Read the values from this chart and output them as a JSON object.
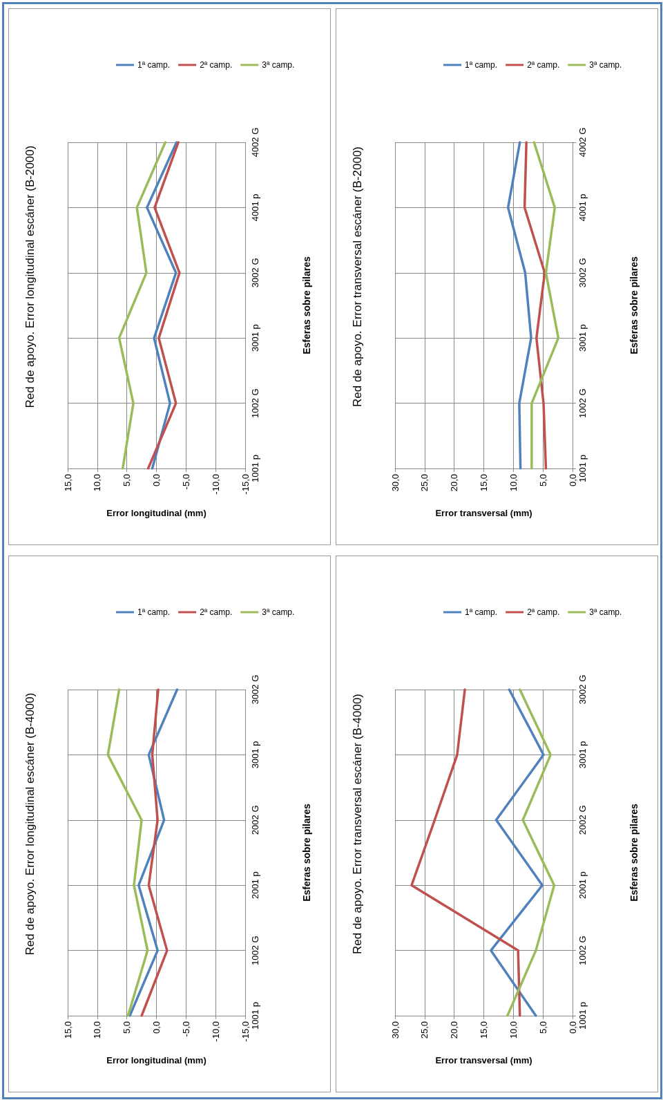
{
  "chart_data": [
    {
      "type": "line",
      "orientation": "horizontal",
      "title": "Red de apoyo. Error longitudinal escáner (B-2000)",
      "xlabel": "Error longitudinal (mm)",
      "ylabel": "Esferas sobre pilares",
      "categories": [
        "4002 G",
        "4001 p",
        "3002 G",
        "3001 p",
        "1002 G",
        "1001 p"
      ],
      "series": [
        {
          "name": "1ª camp.",
          "color": "#4f81bd",
          "values": [
            -3.4,
            1.6,
            -3.3,
            0.4,
            -2.3,
            0.7
          ]
        },
        {
          "name": "2ª camp.",
          "color": "#c0504d",
          "values": [
            -3.7,
            0.3,
            -3.9,
            -0.4,
            -3.3,
            1.4
          ]
        },
        {
          "name": "3ª camp.",
          "color": "#9bbb59",
          "values": [
            -1.5,
            3.3,
            1.7,
            6.3,
            3.9,
            5.7
          ]
        }
      ],
      "xlim": [
        15,
        -15
      ],
      "xticks": [
        {
          "value": 15,
          "label": "15,0"
        },
        {
          "value": 10,
          "label": "10,0"
        },
        {
          "value": 5,
          "label": "5,0"
        },
        {
          "value": 0,
          "label": "0,0"
        },
        {
          "value": -5,
          "label": "-5,0"
        },
        {
          "value": -10,
          "label": "-10,0"
        },
        {
          "value": -15,
          "label": "-15,0"
        }
      ],
      "grid": true,
      "legend": "top",
      "marker": "none"
    },
    {
      "type": "line",
      "orientation": "horizontal",
      "title": "Red de apoyo. Error transversal escáner (B-2000)",
      "xlabel": "Error transversal (mm)",
      "ylabel": "Esferas sobre pilares",
      "categories": [
        "4002 G",
        "4001 p",
        "3002 G",
        "3001 p",
        "1002 G",
        "1001 p"
      ],
      "series": [
        {
          "name": "1ª camp.",
          "color": "#4f81bd",
          "values": [
            8.9,
            10.9,
            8.0,
            7.0,
            9.0,
            8.8
          ]
        },
        {
          "name": "2ª camp.",
          "color": "#c0504d",
          "values": [
            7.8,
            8.1,
            4.7,
            6.1,
            4.9,
            4.5
          ]
        },
        {
          "name": "3ª camp.",
          "color": "#9bbb59",
          "values": [
            6.5,
            3.0,
            4.5,
            2.4,
            6.9,
            6.9
          ]
        }
      ],
      "xlim": [
        30,
        0
      ],
      "xticks": [
        {
          "value": 30,
          "label": "30,0"
        },
        {
          "value": 25,
          "label": "25,0"
        },
        {
          "value": 20,
          "label": "20,0"
        },
        {
          "value": 15,
          "label": "15,0"
        },
        {
          "value": 10,
          "label": "10,0"
        },
        {
          "value": 5,
          "label": "5,0"
        },
        {
          "value": 0,
          "label": "0,0"
        }
      ],
      "grid": true,
      "legend": "top",
      "marker": "none"
    },
    {
      "type": "line",
      "orientation": "horizontal",
      "title": "Red de apoyo. Error longitudinal escáner (B-4000)",
      "xlabel": "Error longitudinal (mm)",
      "ylabel": "Esferas sobre pilares",
      "categories": [
        "3002 G",
        "3001 p",
        "2002 G",
        "2001 p",
        "1002 G",
        "1001 p"
      ],
      "series": [
        {
          "name": "1ª camp.",
          "color": "#4f81bd",
          "values": [
            -3.5,
            1.3,
            -1.3,
            3.0,
            -0.2,
            4.5
          ]
        },
        {
          "name": "2ª camp.",
          "color": "#c0504d",
          "values": [
            -0.3,
            0.7,
            -0.2,
            1.3,
            -1.8,
            2.5
          ]
        },
        {
          "name": "3ª camp.",
          "color": "#9bbb59",
          "values": [
            6.3,
            8.2,
            2.5,
            3.8,
            1.5,
            4.8
          ]
        }
      ],
      "xlim": [
        15,
        -15
      ],
      "xticks": [
        {
          "value": 15,
          "label": "15,0"
        },
        {
          "value": 10,
          "label": "10,0"
        },
        {
          "value": 5,
          "label": "5,0"
        },
        {
          "value": 0,
          "label": "0,0"
        },
        {
          "value": -5,
          "label": "-5,0"
        },
        {
          "value": -10,
          "label": "-10,0"
        },
        {
          "value": -15,
          "label": "-15,0"
        }
      ],
      "grid": true,
      "legend": "top",
      "marker": "none"
    },
    {
      "type": "line",
      "orientation": "horizontal",
      "title": "Red de apoyo. Error transversal escáner (B-4000)",
      "xlabel": "Error transversal (mm)",
      "ylabel": "Esferas sobre pilares",
      "categories": [
        "3002 G",
        "3001 p",
        "2002 G",
        "2001 p",
        "1002 G",
        "1001 p"
      ],
      "series": [
        {
          "name": "1ª camp.",
          "color": "#4f81bd",
          "values": [
            10.7,
            4.9,
            12.9,
            5.1,
            13.8,
            6.2
          ]
        },
        {
          "name": "2ª camp.",
          "color": "#c0504d",
          "values": [
            18.2,
            19.5,
            23.3,
            27.2,
            9.2,
            8.9
          ]
        },
        {
          "name": "3ª camp.",
          "color": "#9bbb59",
          "values": [
            8.9,
            3.7,
            8.4,
            3.1,
            6.2,
            11.0
          ]
        }
      ],
      "xlim": [
        30,
        0
      ],
      "xticks": [
        {
          "value": 30,
          "label": "30,0"
        },
        {
          "value": 25,
          "label": "25,0"
        },
        {
          "value": 20,
          "label": "20,0"
        },
        {
          "value": 15,
          "label": "15,0"
        },
        {
          "value": 10,
          "label": "10,0"
        },
        {
          "value": 5,
          "label": "5,0"
        },
        {
          "value": 0,
          "label": "0,0"
        }
      ],
      "grid": true,
      "legend": "top",
      "marker": "none"
    }
  ]
}
